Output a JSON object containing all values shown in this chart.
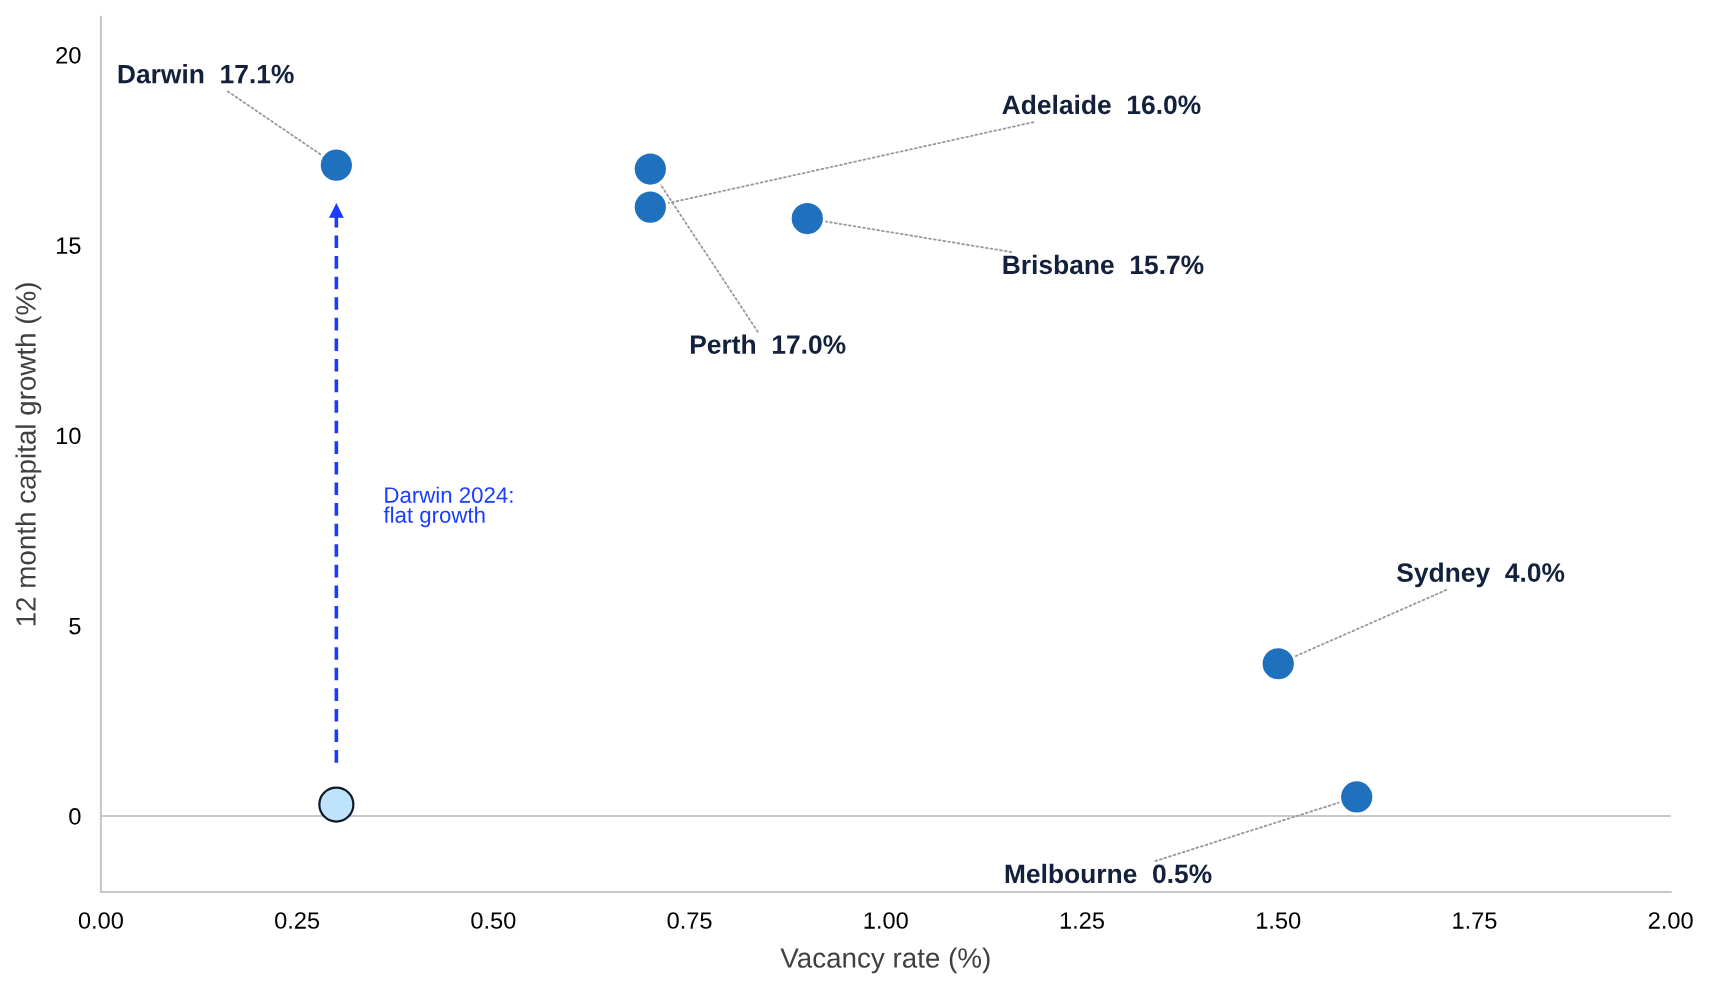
{
  "chart_data": {
    "type": "scatter",
    "xlabel": "Vacancy rate (%)",
    "ylabel": "12 month capital growth (%)",
    "series": [
      {
        "color": "#1f70bd",
        "x": [
          0.3,
          0.7,
          0.7,
          0.9,
          1.5,
          1.6
        ],
        "values": [
          17.1,
          17.0,
          16.0,
          15.7,
          4.0,
          0.5
        ]
      },
      {
        "color": "#bfe3fb",
        "x": [
          0.3
        ],
        "values": [
          0.3
        ]
      },
      {
        "type": "line",
        "color": "#1a3cff",
        "line_style": "dashed",
        "marker": "triangle",
        "x": [
          0.3,
          0.3
        ],
        "values": [
          1.4,
          15.9
        ]
      }
    ],
    "xlim": [
      0,
      2
    ],
    "ylim": [
      -2,
      21
    ],
    "xticks": [
      {
        "value": 0,
        "label": "0.00"
      },
      {
        "value": 0.25,
        "label": "0.25"
      },
      {
        "value": 0.5,
        "label": "0.50"
      },
      {
        "value": 0.75,
        "label": "0.75"
      },
      {
        "value": 1,
        "label": "1.00"
      },
      {
        "value": 1.25,
        "label": "1.25"
      },
      {
        "value": 1.5,
        "label": "1.50"
      },
      {
        "value": 1.75,
        "label": "1.75"
      },
      {
        "value": 2,
        "label": "2.00"
      }
    ],
    "yticks": [
      0,
      5,
      10,
      15,
      20
    ],
    "ref_lines": [
      {
        "axis": "y",
        "value": 0,
        "color": "#c8c8c8"
      }
    ],
    "grid": false,
    "legend": false,
    "marker": "circle",
    "annotations": [
      {
        "text": "Darwin  17.1%",
        "x": 0.3,
        "y": 17.1
      },
      {
        "text": "Adelaide  16.0%",
        "x": 0.7,
        "y": 16.0
      },
      {
        "text": "Brisbane  15.7%",
        "x": 0.9,
        "y": 15.7
      },
      {
        "text": "Perth  17.0%",
        "x": 0.7,
        "y": 17.0
      },
      {
        "text": "Sydney  4.0%",
        "x": 1.5,
        "y": 4.0
      },
      {
        "text": "Melbourne  0.5%",
        "x": 1.6,
        "y": 0.5
      },
      "Darwin 2024:\nflat growth"
    ]
  }
}
